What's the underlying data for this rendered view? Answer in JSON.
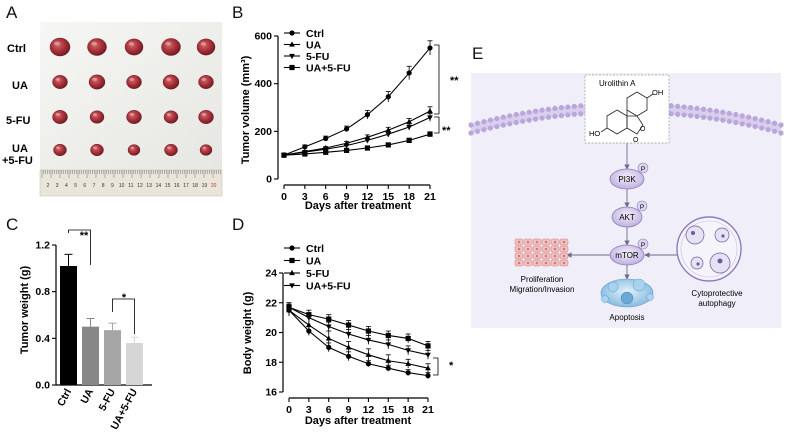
{
  "panels": {
    "A": {
      "letter": "A",
      "row_labels": [
        "Ctrl",
        "UA",
        "5-FU",
        "UA",
        "+5-FU"
      ],
      "ruler_numbers": [
        "2",
        "3",
        "4",
        "5",
        "6",
        "7",
        "8",
        "9",
        "10",
        "11",
        "12",
        "13",
        "14",
        "15",
        "16",
        "17",
        "18",
        "19",
        "20"
      ]
    },
    "B": {
      "letter": "B"
    },
    "C": {
      "letter": "C"
    },
    "D": {
      "letter": "D"
    },
    "E": {
      "letter": "E",
      "compound": "Urolithin A",
      "oh_top": "OH",
      "oh_left": "HO",
      "oxygen_ring": "O",
      "oxygen_carbonyl": "O",
      "pi3k": "PI3K",
      "akt": "AKT",
      "mtor": "mTOR",
      "p1": "P",
      "p2": "P",
      "p3": "P",
      "proliferation_1": "Proliferation",
      "proliferation_2": "Migration/Invasion",
      "apoptosis": "Apoptosis",
      "autophagy_1": "Cytoprotective",
      "autophagy_2": "autophagy",
      "colors": {
        "background": "#f0eef8",
        "membrane": "#c7b6e2",
        "node_fill": "#dcd4ef",
        "node_stroke": "#8d7bbd"
      }
    }
  },
  "chart_data": [
    {
      "id": "B",
      "type": "line",
      "xlabel": "Days after treatment",
      "ylabel": "Tumor volume (mm³)",
      "x": [
        0,
        3,
        6,
        9,
        12,
        15,
        18,
        21
      ],
      "xticks": [
        "0",
        "3",
        "6",
        "9",
        "12",
        "15",
        "18",
        "21"
      ],
      "ylim": [
        0,
        600
      ],
      "yticks": [
        "0",
        "200",
        "400",
        "600"
      ],
      "series": [
        {
          "name": "Ctrl",
          "marker": "circle",
          "values": [
            100,
            135,
            170,
            210,
            270,
            345,
            445,
            550
          ],
          "err": [
            5,
            8,
            10,
            12,
            18,
            22,
            28,
            30
          ]
        },
        {
          "name": "UA",
          "marker": "triangle-up",
          "values": [
            100,
            115,
            130,
            150,
            175,
            205,
            240,
            285
          ],
          "err": [
            4,
            5,
            6,
            8,
            10,
            12,
            14,
            18
          ]
        },
        {
          "name": "5-FU",
          "marker": "triangle-down",
          "values": [
            100,
            113,
            125,
            140,
            162,
            188,
            218,
            258
          ],
          "err": [
            4,
            5,
            6,
            7,
            9,
            11,
            13,
            16
          ]
        },
        {
          "name": "UA+5-FU",
          "marker": "square",
          "values": [
            100,
            105,
            112,
            120,
            130,
            143,
            162,
            188
          ],
          "err": [
            3,
            4,
            4,
            5,
            6,
            7,
            9,
            10
          ]
        }
      ],
      "annotations": [
        "**",
        "**"
      ],
      "legend": "top-left"
    },
    {
      "id": "C",
      "type": "bar",
      "ylabel": "Tumor weight (g)",
      "categories": [
        "Ctrl",
        "UA",
        "5-FU",
        "UA+5-FU"
      ],
      "values": [
        1.02,
        0.5,
        0.47,
        0.36
      ],
      "err": [
        0.1,
        0.07,
        0.06,
        0.05
      ],
      "colors": [
        "#000000",
        "#878787",
        "#a6a6a6",
        "#d6d6d6"
      ],
      "ylim": [
        0,
        1.2
      ],
      "yticks": [
        "0.0",
        "0.4",
        "0.8",
        "1.2"
      ],
      "annotations": [
        "**",
        "*"
      ]
    },
    {
      "id": "D",
      "type": "line",
      "xlabel": "Days after treatment",
      "ylabel": "Body weight (g)",
      "x": [
        0,
        3,
        6,
        9,
        12,
        15,
        18,
        21
      ],
      "xticks": [
        "0",
        "3",
        "6",
        "9",
        "12",
        "15",
        "18",
        "21"
      ],
      "ylim": [
        16,
        24
      ],
      "yticks": [
        "16",
        "18",
        "20",
        "22",
        "24"
      ],
      "series": [
        {
          "name": "Ctrl",
          "marker": "circle",
          "values": [
            21.5,
            20.1,
            19.0,
            18.4,
            17.9,
            17.6,
            17.3,
            17.1
          ],
          "err": [
            0.3,
            0.3,
            0.3,
            0.3,
            0.2,
            0.2,
            0.2,
            0.2
          ]
        },
        {
          "name": "UA",
          "marker": "square",
          "values": [
            21.7,
            21.2,
            20.9,
            20.5,
            20.1,
            19.8,
            19.6,
            19.1
          ],
          "err": [
            0.3,
            0.3,
            0.3,
            0.3,
            0.3,
            0.3,
            0.3,
            0.3
          ]
        },
        {
          "name": "5-FU",
          "marker": "triangle-up",
          "values": [
            21.5,
            20.5,
            19.6,
            19.0,
            18.5,
            18.1,
            17.9,
            17.6
          ],
          "err": [
            0.4,
            0.6,
            0.5,
            0.4,
            0.4,
            0.4,
            0.3,
            0.3
          ]
        },
        {
          "name": "UA+5-FU",
          "marker": "triangle-down",
          "values": [
            21.7,
            21.0,
            20.4,
            19.9,
            19.5,
            19.2,
            18.8,
            18.5
          ],
          "err": [
            0.3,
            0.3,
            0.3,
            0.3,
            0.3,
            0.3,
            0.3,
            0.3
          ]
        }
      ],
      "annotations": [
        "*"
      ],
      "legend": "top-left"
    }
  ]
}
